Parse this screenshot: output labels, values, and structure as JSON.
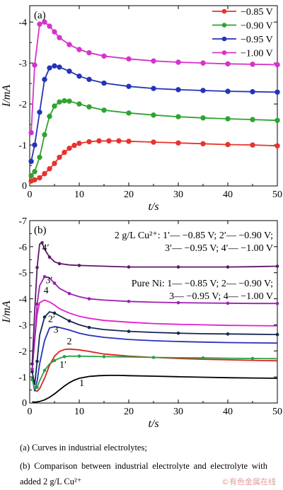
{
  "chart_data": [
    {
      "type": "line",
      "panel_label": "(a)",
      "xlabel": "t/s",
      "ylabel": "I/mA",
      "xlim": [
        0,
        50
      ],
      "ylim": [
        0,
        -4.4
      ],
      "x_ticks": [
        "0",
        "10",
        "20",
        "30",
        "40",
        "50"
      ],
      "y_ticks": [
        "-1",
        "-2",
        "-3",
        "-4"
      ],
      "legend_position": "top-right",
      "series": [
        {
          "name": "−0.85 V",
          "color": "#e8322d",
          "marker": true,
          "points": [
            [
              0.3,
              -0.12
            ],
            [
              1,
              -0.15
            ],
            [
              2,
              -0.2
            ],
            [
              3,
              -0.3
            ],
            [
              4,
              -0.42
            ],
            [
              5,
              -0.55
            ],
            [
              6,
              -0.7
            ],
            [
              7,
              -0.82
            ],
            [
              8,
              -0.92
            ],
            [
              9,
              -0.99
            ],
            [
              10,
              -1.04
            ],
            [
              12,
              -1.08
            ],
            [
              14,
              -1.1
            ],
            [
              16,
              -1.1
            ],
            [
              18,
              -1.1
            ],
            [
              20,
              -1.09
            ],
            [
              25,
              -1.07
            ],
            [
              30,
              -1.05
            ],
            [
              35,
              -1.03
            ],
            [
              40,
              -1.01
            ],
            [
              45,
              -1.0
            ],
            [
              50,
              -0.98
            ]
          ]
        },
        {
          "name": "−0.90 V",
          "color": "#2fa32f",
          "marker": true,
          "points": [
            [
              0.3,
              -0.25
            ],
            [
              1,
              -0.35
            ],
            [
              2,
              -0.7
            ],
            [
              3,
              -1.25
            ],
            [
              4,
              -1.7
            ],
            [
              5,
              -1.95
            ],
            [
              6,
              -2.05
            ],
            [
              7,
              -2.08
            ],
            [
              8,
              -2.07
            ],
            [
              10,
              -2.0
            ],
            [
              12,
              -1.93
            ],
            [
              15,
              -1.85
            ],
            [
              20,
              -1.78
            ],
            [
              25,
              -1.73
            ],
            [
              30,
              -1.69
            ],
            [
              35,
              -1.66
            ],
            [
              40,
              -1.64
            ],
            [
              45,
              -1.62
            ],
            [
              50,
              -1.6
            ]
          ]
        },
        {
          "name": "−0.95 V",
          "color": "#2533b8",
          "marker": true,
          "points": [
            [
              0.3,
              -0.6
            ],
            [
              1,
              -1.0
            ],
            [
              2,
              -1.8
            ],
            [
              3,
              -2.6
            ],
            [
              4,
              -2.88
            ],
            [
              5,
              -2.93
            ],
            [
              6,
              -2.9
            ],
            [
              8,
              -2.8
            ],
            [
              10,
              -2.68
            ],
            [
              12,
              -2.6
            ],
            [
              15,
              -2.51
            ],
            [
              20,
              -2.43
            ],
            [
              25,
              -2.38
            ],
            [
              30,
              -2.35
            ],
            [
              35,
              -2.33
            ],
            [
              40,
              -2.31
            ],
            [
              45,
              -2.3
            ],
            [
              50,
              -2.29
            ]
          ]
        },
        {
          "name": "−1.00 V",
          "color": "#d633c9",
          "marker": true,
          "points": [
            [
              0.3,
              -1.3
            ],
            [
              1,
              -2.95
            ],
            [
              2,
              -3.95
            ],
            [
              3,
              -4.0
            ],
            [
              4,
              -3.9
            ],
            [
              5,
              -3.76
            ],
            [
              6,
              -3.62
            ],
            [
              8,
              -3.45
            ],
            [
              10,
              -3.33
            ],
            [
              12,
              -3.25
            ],
            [
              15,
              -3.17
            ],
            [
              20,
              -3.1
            ],
            [
              25,
              -3.05
            ],
            [
              30,
              -3.02
            ],
            [
              35,
              -3.0
            ],
            [
              40,
              -2.98
            ],
            [
              45,
              -2.97
            ],
            [
              50,
              -2.96
            ]
          ]
        }
      ]
    },
    {
      "type": "line",
      "panel_label": "(b)",
      "xlabel": "t/s",
      "ylabel": "I/mA",
      "xlim": [
        0,
        50
      ],
      "ylim": [
        0,
        -7
      ],
      "x_ticks": [
        "0",
        "10",
        "20",
        "30",
        "40",
        "50"
      ],
      "y_ticks": [
        "-1",
        "-2",
        "-3",
        "-4",
        "-5",
        "-6",
        "-7"
      ],
      "annotations": {
        "cu_line1": "2 g/L Cu²⁺: 1′— −0.85 V; 2′— −0.90 V;",
        "cu_line2": "3′— −0.95 V; 4′— −1.00 V",
        "ni_line1": "Pure Ni: 1— −0.85 V; 2— −0.90 V;",
        "ni_line2": "3— −0.95 V; 4— −1.00 V"
      },
      "series": [
        {
          "name": "1",
          "color": "#000000",
          "marker": false,
          "label_at": [
            10,
            -0.65
          ],
          "points": [
            [
              0.5,
              -0.05
            ],
            [
              1,
              -0.03
            ],
            [
              2,
              -0.06
            ],
            [
              3,
              -0.12
            ],
            [
              4,
              -0.22
            ],
            [
              5,
              -0.35
            ],
            [
              6,
              -0.5
            ],
            [
              7,
              -0.65
            ],
            [
              8,
              -0.78
            ],
            [
              9,
              -0.88
            ],
            [
              10,
              -0.95
            ],
            [
              12,
              -1.02
            ],
            [
              14,
              -1.05
            ],
            [
              16,
              -1.06
            ],
            [
              18,
              -1.06
            ],
            [
              20,
              -1.05
            ],
            [
              25,
              -1.03
            ],
            [
              30,
              -1.01
            ],
            [
              35,
              -0.99
            ],
            [
              40,
              -0.97
            ],
            [
              45,
              -0.96
            ],
            [
              50,
              -0.95
            ]
          ]
        },
        {
          "name": "2",
          "color": "#e02020",
          "marker": false,
          "label_at": [
            7.5,
            -2.25
          ],
          "points": [
            [
              0.5,
              -1.0
            ],
            [
              1,
              -0.5
            ],
            [
              1.5,
              -0.45
            ],
            [
              2,
              -0.55
            ],
            [
              3,
              -0.95
            ],
            [
              4,
              -1.45
            ],
            [
              5,
              -1.8
            ],
            [
              6,
              -1.98
            ],
            [
              7,
              -2.05
            ],
            [
              8,
              -2.07
            ],
            [
              10,
              -2.04
            ],
            [
              12,
              -1.98
            ],
            [
              15,
              -1.88
            ],
            [
              20,
              -1.8
            ],
            [
              25,
              -1.75
            ],
            [
              30,
              -1.71
            ],
            [
              35,
              -1.68
            ],
            [
              40,
              -1.66
            ],
            [
              45,
              -1.64
            ],
            [
              50,
              -1.62
            ]
          ]
        },
        {
          "name": "3",
          "color": "#2533b8",
          "marker": false,
          "label_at": [
            4.8,
            -2.7
          ],
          "points": [
            [
              0.5,
              -1.0
            ],
            [
              1,
              -0.45
            ],
            [
              1.5,
              -0.85
            ],
            [
              2,
              -1.5
            ],
            [
              3,
              -2.4
            ],
            [
              4,
              -2.88
            ],
            [
              5,
              -2.93
            ],
            [
              6,
              -2.9
            ],
            [
              8,
              -2.8
            ],
            [
              10,
              -2.68
            ],
            [
              12,
              -2.6
            ],
            [
              15,
              -2.52
            ],
            [
              20,
              -2.44
            ],
            [
              25,
              -2.39
            ],
            [
              30,
              -2.36
            ],
            [
              35,
              -2.34
            ],
            [
              40,
              -2.32
            ],
            [
              45,
              -2.31
            ],
            [
              50,
              -2.3
            ]
          ]
        },
        {
          "name": "4",
          "color": "#e020d0",
          "marker": false,
          "label_at": [
            2.8,
            -4.2
          ],
          "points": [
            [
              0.5,
              -1.5
            ],
            [
              1,
              -2.4
            ],
            [
              1.5,
              -3.4
            ],
            [
              2,
              -3.85
            ],
            [
              3,
              -3.95
            ],
            [
              4,
              -3.88
            ],
            [
              5,
              -3.76
            ],
            [
              6,
              -3.62
            ],
            [
              8,
              -3.45
            ],
            [
              10,
              -3.33
            ],
            [
              12,
              -3.25
            ],
            [
              15,
              -3.17
            ],
            [
              20,
              -3.1
            ],
            [
              25,
              -3.05
            ],
            [
              30,
              -3.02
            ],
            [
              35,
              -3.0
            ],
            [
              40,
              -2.98
            ],
            [
              45,
              -2.97
            ],
            [
              50,
              -2.96
            ]
          ]
        },
        {
          "name": "1′",
          "color": "#27a243",
          "marker": true,
          "label_at": [
            6,
            -1.35
          ],
          "points": [
            [
              0.5,
              -0.9
            ],
            [
              1,
              -0.55
            ],
            [
              1.5,
              -0.6
            ],
            [
              2,
              -0.85
            ],
            [
              3,
              -1.25
            ],
            [
              4,
              -1.5
            ],
            [
              5,
              -1.63
            ],
            [
              6,
              -1.72
            ],
            [
              7,
              -1.78
            ],
            [
              8,
              -1.8
            ],
            [
              10,
              -1.8
            ],
            [
              12,
              -1.79
            ],
            [
              15,
              -1.78
            ],
            [
              20,
              -1.77
            ],
            [
              25,
              -1.75
            ],
            [
              30,
              -1.74
            ],
            [
              35,
              -1.73
            ],
            [
              40,
              -1.72
            ],
            [
              45,
              -1.71
            ],
            [
              50,
              -1.7
            ]
          ]
        },
        {
          "name": "2′",
          "color": "#142850",
          "marker": true,
          "label_at": [
            3.7,
            -3.1
          ],
          "points": [
            [
              0.5,
              -1.2
            ],
            [
              1,
              -0.7
            ],
            [
              1.5,
              -1.6
            ],
            [
              2,
              -2.6
            ],
            [
              3,
              -3.3
            ],
            [
              4,
              -3.5
            ],
            [
              5,
              -3.45
            ],
            [
              6,
              -3.35
            ],
            [
              8,
              -3.15
            ],
            [
              10,
              -3.0
            ],
            [
              12,
              -2.9
            ],
            [
              15,
              -2.82
            ],
            [
              20,
              -2.75
            ],
            [
              25,
              -2.71
            ],
            [
              30,
              -2.68
            ],
            [
              35,
              -2.66
            ],
            [
              40,
              -2.65
            ],
            [
              45,
              -2.64
            ],
            [
              50,
              -2.63
            ]
          ]
        },
        {
          "name": "3′",
          "color": "#9b1fb0",
          "marker": true,
          "label_at": [
            3.2,
            -4.6
          ],
          "points": [
            [
              0.5,
              -1.3
            ],
            [
              1,
              -2.4
            ],
            [
              1.5,
              -3.8
            ],
            [
              2,
              -4.5
            ],
            [
              3,
              -4.85
            ],
            [
              4,
              -4.8
            ],
            [
              5,
              -4.6
            ],
            [
              6,
              -4.4
            ],
            [
              8,
              -4.2
            ],
            [
              10,
              -4.08
            ],
            [
              12,
              -4.0
            ],
            [
              15,
              -3.95
            ],
            [
              20,
              -3.9
            ],
            [
              25,
              -3.87
            ],
            [
              30,
              -3.85
            ],
            [
              35,
              -3.84
            ],
            [
              40,
              -3.83
            ],
            [
              45,
              -3.82
            ],
            [
              50,
              -3.82
            ]
          ]
        },
        {
          "name": "4′",
          "color": "#5b1a66",
          "marker": true,
          "label_at": [
            2.5,
            -5.85
          ],
          "points": [
            [
              0.5,
              -1.5
            ],
            [
              1,
              -3.5
            ],
            [
              1.5,
              -5.2
            ],
            [
              2,
              -6.1
            ],
            [
              2.5,
              -6.15
            ],
            [
              3,
              -5.9
            ],
            [
              4,
              -5.6
            ],
            [
              5,
              -5.42
            ],
            [
              6,
              -5.35
            ],
            [
              8,
              -5.3
            ],
            [
              10,
              -5.28
            ],
            [
              15,
              -5.25
            ],
            [
              20,
              -5.22
            ],
            [
              25,
              -5.22
            ],
            [
              30,
              -5.22
            ],
            [
              35,
              -5.22
            ],
            [
              40,
              -5.22
            ],
            [
              45,
              -5.23
            ],
            [
              50,
              -5.25
            ]
          ]
        }
      ]
    }
  ],
  "captions": {
    "a": "(a)  Curves  in  industrial  electrolytes;",
    "b": "(b)  Comparison  between  industrial  electrolyte  and  electrolyte with added 2 g/L Cu²⁺"
  },
  "watermark": "©有色金属在线"
}
